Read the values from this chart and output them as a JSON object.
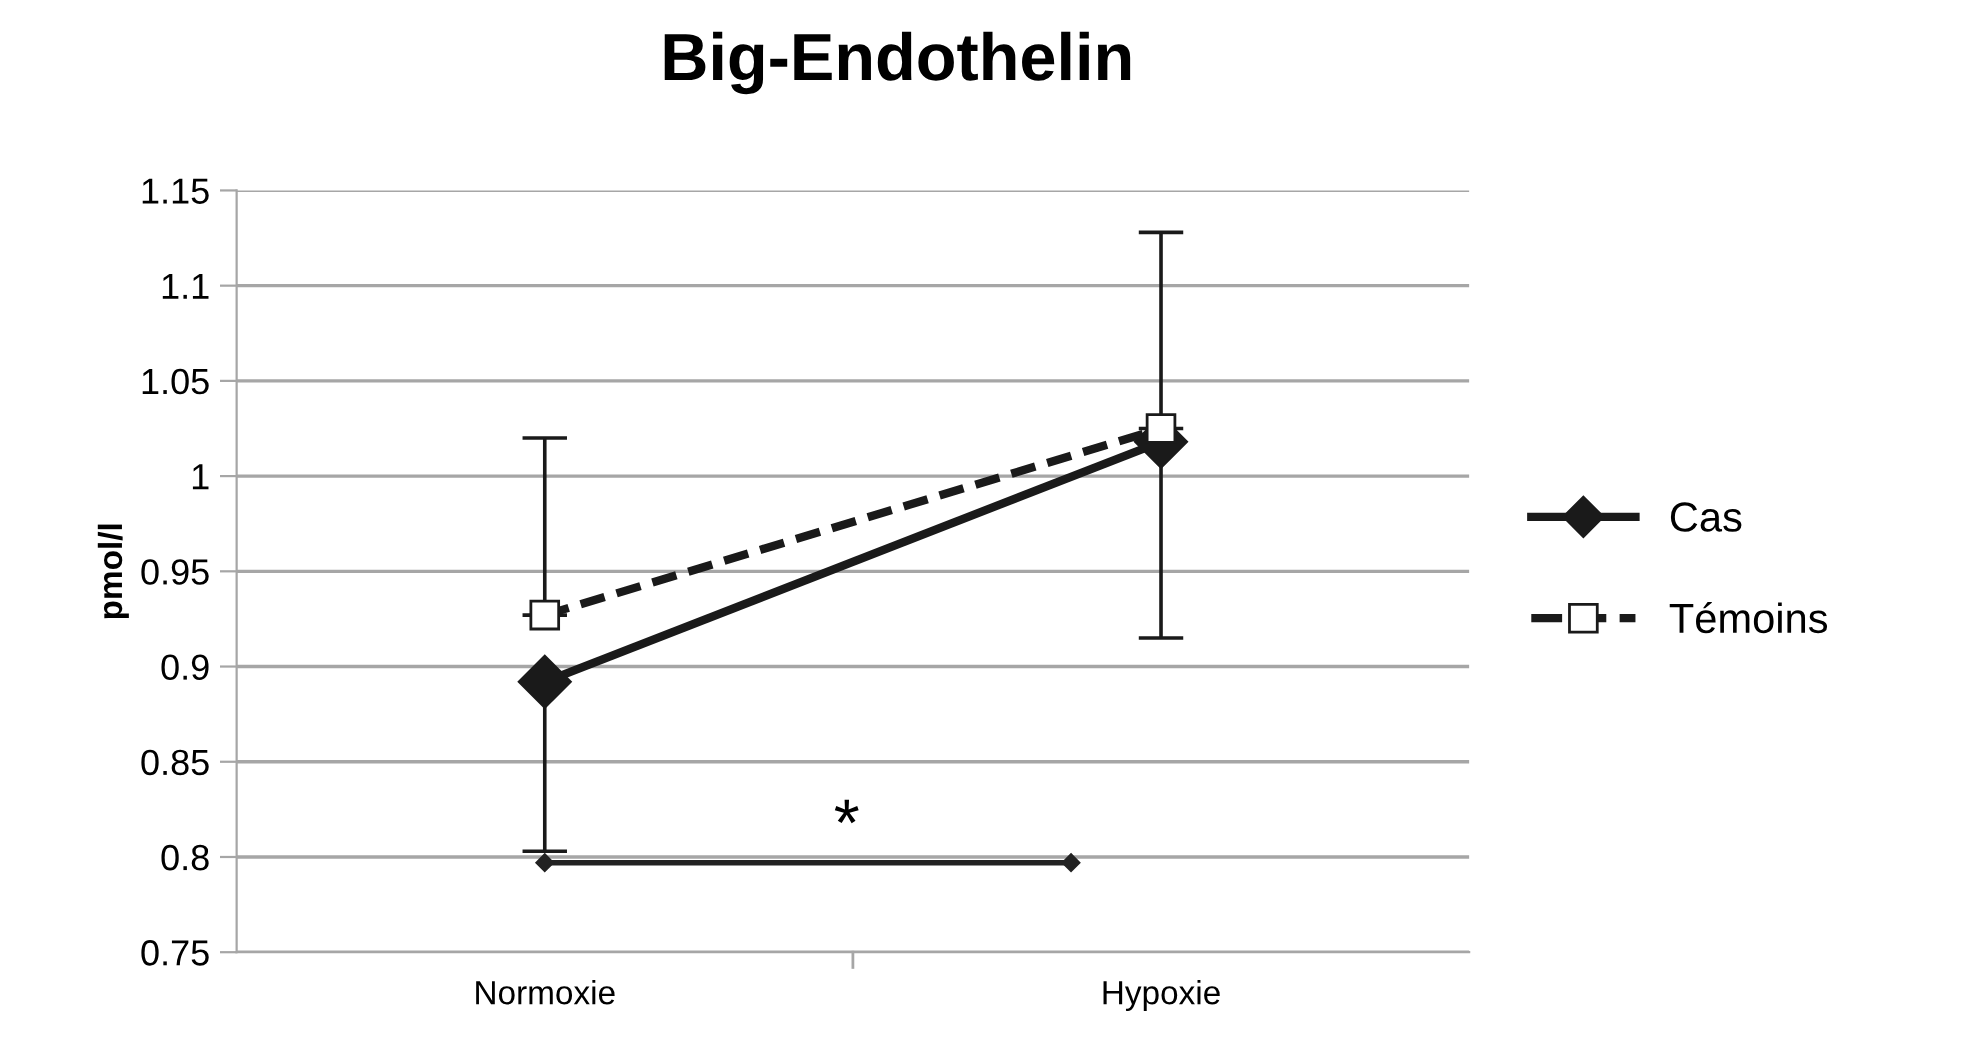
{
  "chart_data": {
    "type": "line",
    "title": "Big-Endothelin",
    "ylabel": "pmol/l",
    "categories": [
      "Normoxie",
      "Hypoxie"
    ],
    "series": [
      {
        "name": "Cas",
        "color": "#1a1a1a",
        "values": [
          0.892,
          1.018
        ],
        "marker": "diamond",
        "line_style": "solid",
        "errors": [
          [
            0.803,
            0.892
          ],
          [
            0.915,
            1.018
          ]
        ]
      },
      {
        "name": "Témoins",
        "color": "#1a1a1a",
        "values": [
          0.927,
          1.025
        ],
        "marker": "square",
        "line_style": "dashed",
        "errors": [
          [
            0.927,
            1.02
          ],
          [
            1.025,
            1.128
          ]
        ]
      }
    ],
    "ylim": [
      0.75,
      1.15
    ],
    "yticks": [
      0.75,
      0.8,
      0.85,
      0.9,
      0.95,
      1,
      1.05,
      1.1,
      1.15
    ],
    "grid": "y",
    "legend": "right",
    "annotations": [
      "*"
    ]
  }
}
